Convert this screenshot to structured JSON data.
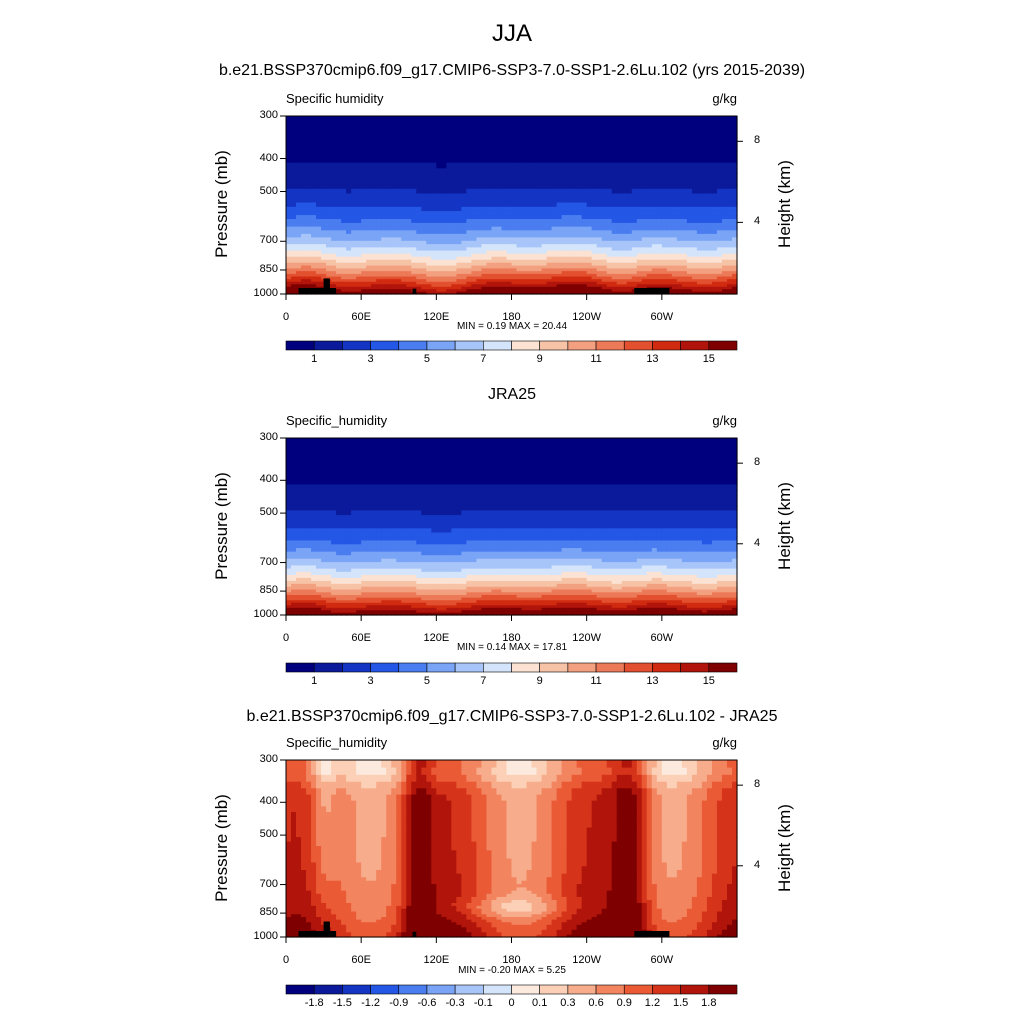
{
  "figure_title": "JJA",
  "colors": {
    "seq_palette": [
      "#00007f",
      "#0a1a9a",
      "#1435c4",
      "#2457e5",
      "#4a7df0",
      "#7aa4f5",
      "#a8c5f9",
      "#d4e4fb",
      "#fbe2d2",
      "#f7c3a6",
      "#f2a07f",
      "#ec7957",
      "#e2502f",
      "#d02a10",
      "#b0140a",
      "#7f0000"
    ],
    "diff_palette": [
      "#00007f",
      "#0a1a9a",
      "#1435c4",
      "#2457e5",
      "#4a7df0",
      "#7aa4f5",
      "#a8c5f9",
      "#d4e4fb",
      "#fdeadf",
      "#fbd0b6",
      "#f7ad8c",
      "#f2845f",
      "#ea5a35",
      "#d6341a",
      "#b0140a",
      "#7f0000"
    ],
    "topography": "#000000"
  },
  "chart_data": [
    {
      "type": "heatmap",
      "title": "b.e21.BSSP370cmip6.f09_g17.CMIP6-SSP3-7.0-SSP1-2.6Lu.102 (yrs 2015-2039)",
      "left_string": "Specific humidity",
      "right_string": "g/kg",
      "ylabel": "Pressure (mb)",
      "ylabel_right": "Height (km)",
      "xticks": [
        "0",
        "60E",
        "120E",
        "180",
        "120W",
        "60W"
      ],
      "yticks": [
        "300",
        "400",
        "500",
        "700",
        "850",
        "1000"
      ],
      "yticks_right": [
        "8",
        "4"
      ],
      "stats": "MIN =   0.19  MAX =  20.44",
      "colorbar_labels": [
        "1",
        "3",
        "5",
        "7",
        "9",
        "11",
        "13",
        "15"
      ],
      "min": 0.19,
      "max": 20.44
    },
    {
      "type": "heatmap",
      "title": "JRA25",
      "left_string": "Specific_humidity",
      "right_string": "g/kg",
      "ylabel": "Pressure (mb)",
      "ylabel_right": "Height (km)",
      "xticks": [
        "0",
        "60E",
        "120E",
        "180",
        "120W",
        "60W"
      ],
      "yticks": [
        "300",
        "400",
        "500",
        "700",
        "850",
        "1000"
      ],
      "yticks_right": [
        "8",
        "4"
      ],
      "stats": "MIN =   0.14  MAX =  17.81",
      "colorbar_labels": [
        "1",
        "3",
        "5",
        "7",
        "9",
        "11",
        "13",
        "15"
      ],
      "min": 0.14,
      "max": 17.81
    },
    {
      "type": "heatmap",
      "title": "b.e21.BSSP370cmip6.f09_g17.CMIP6-SSP3-7.0-SSP1-2.6Lu.102 - JRA25",
      "left_string": "Specific_humidity",
      "right_string": "g/kg",
      "ylabel": "Pressure (mb)",
      "ylabel_right": "Height (km)",
      "xticks": [
        "0",
        "60E",
        "120E",
        "180",
        "120W",
        "60W"
      ],
      "yticks": [
        "300",
        "400",
        "500",
        "700",
        "850",
        "1000"
      ],
      "yticks_right": [
        "8",
        "4"
      ],
      "stats": "MIN =  -0.20  MAX =   5.25",
      "colorbar_labels": [
        "-1.8",
        "-1.5",
        "-1.2",
        "-0.9",
        "-0.6",
        "-0.3",
        "-0.1",
        "0",
        "0.1",
        "0.3",
        "0.6",
        "0.9",
        "1.2",
        "1.5",
        "1.8"
      ],
      "min": -0.2,
      "max": 5.25
    }
  ]
}
